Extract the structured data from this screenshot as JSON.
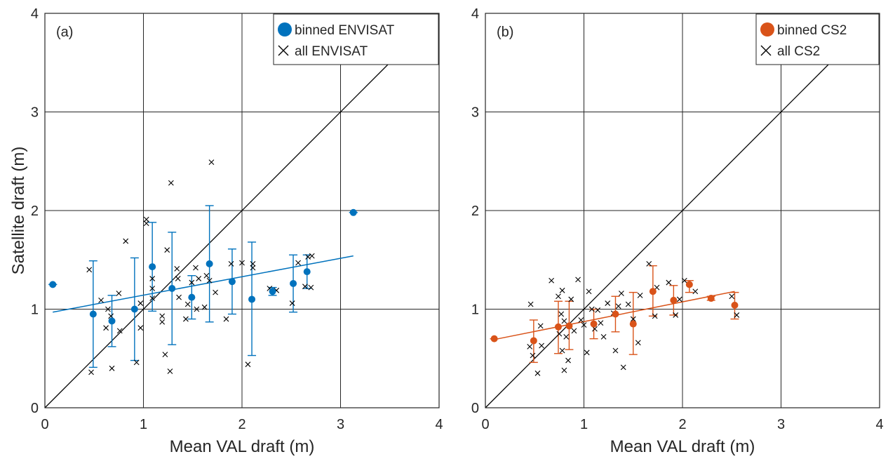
{
  "figure": {
    "ylabel": "Satellite draft (m)",
    "colors": {
      "envisat": "#0072BD",
      "cs2": "#D95319",
      "raw": "#000000",
      "grid": "#262626"
    }
  },
  "chart_data": [
    {
      "type": "scatter",
      "panel": "(a)",
      "xlabel": "Mean VAL draft (m)",
      "ylabel": "Satellite draft (m)",
      "xlim": [
        0,
        4
      ],
      "ylim": [
        0,
        4
      ],
      "xticks": [
        "0",
        "1",
        "2",
        "3",
        "4"
      ],
      "yticks": [
        "0",
        "1",
        "2",
        "3",
        "4"
      ],
      "grid": true,
      "legend_position": "top-right",
      "legend": [
        "binned ENVISAT",
        "all ENVISAT"
      ],
      "one_to_one_line": true,
      "fit_line": {
        "x": [
          0.08,
          3.13
        ],
        "y": [
          0.97,
          1.54
        ]
      },
      "series": [
        {
          "name": "binned ENVISAT",
          "color": "#0072BD",
          "marker": "circle",
          "points": [
            {
              "x": 0.08,
              "y": 1.25,
              "lo": 1.25,
              "hi": 1.25
            },
            {
              "x": 0.49,
              "y": 0.95,
              "lo": 0.41,
              "hi": 1.49
            },
            {
              "x": 0.68,
              "y": 0.88,
              "lo": 0.62,
              "hi": 1.14
            },
            {
              "x": 0.91,
              "y": 1.0,
              "lo": 0.48,
              "hi": 1.52
            },
            {
              "x": 1.09,
              "y": 1.43,
              "lo": 0.98,
              "hi": 1.88
            },
            {
              "x": 1.29,
              "y": 1.21,
              "lo": 0.64,
              "hi": 1.78
            },
            {
              "x": 1.49,
              "y": 1.12,
              "lo": 0.9,
              "hi": 1.34
            },
            {
              "x": 1.67,
              "y": 1.46,
              "lo": 0.87,
              "hi": 2.05
            },
            {
              "x": 1.9,
              "y": 1.28,
              "lo": 0.95,
              "hi": 1.61
            },
            {
              "x": 2.1,
              "y": 1.1,
              "lo": 0.53,
              "hi": 1.68
            },
            {
              "x": 2.31,
              "y": 1.18,
              "lo": 1.14,
              "hi": 1.22
            },
            {
              "x": 2.52,
              "y": 1.26,
              "lo": 0.97,
              "hi": 1.55
            },
            {
              "x": 2.66,
              "y": 1.38,
              "lo": 1.21,
              "hi": 1.55
            },
            {
              "x": 3.13,
              "y": 1.98,
              "lo": 1.98,
              "hi": 1.98
            }
          ]
        },
        {
          "name": "all ENVISAT",
          "color": "#000000",
          "marker": "x",
          "points": [
            {
              "x": 0.47,
              "y": 0.36
            },
            {
              "x": 0.45,
              "y": 1.4
            },
            {
              "x": 0.57,
              "y": 1.09
            },
            {
              "x": 0.62,
              "y": 0.81
            },
            {
              "x": 0.64,
              "y": 1.0
            },
            {
              "x": 0.67,
              "y": 0.93
            },
            {
              "x": 0.68,
              "y": 0.4
            },
            {
              "x": 0.75,
              "y": 1.16
            },
            {
              "x": 0.76,
              "y": 0.78
            },
            {
              "x": 0.82,
              "y": 1.69
            },
            {
              "x": 0.93,
              "y": 0.46
            },
            {
              "x": 0.97,
              "y": 0.81
            },
            {
              "x": 0.97,
              "y": 1.06
            },
            {
              "x": 1.03,
              "y": 1.91
            },
            {
              "x": 1.03,
              "y": 1.87
            },
            {
              "x": 1.09,
              "y": 1.31
            },
            {
              "x": 1.09,
              "y": 1.21
            },
            {
              "x": 1.09,
              "y": 1.11
            },
            {
              "x": 1.19,
              "y": 0.93
            },
            {
              "x": 1.19,
              "y": 0.87
            },
            {
              "x": 1.22,
              "y": 0.54
            },
            {
              "x": 1.24,
              "y": 1.6
            },
            {
              "x": 1.28,
              "y": 2.28
            },
            {
              "x": 1.27,
              "y": 0.37
            },
            {
              "x": 1.34,
              "y": 1.41
            },
            {
              "x": 1.36,
              "y": 1.12
            },
            {
              "x": 1.35,
              "y": 1.31
            },
            {
              "x": 1.43,
              "y": 0.9
            },
            {
              "x": 1.45,
              "y": 1.05
            },
            {
              "x": 1.49,
              "y": 1.27
            },
            {
              "x": 1.53,
              "y": 1.42
            },
            {
              "x": 1.54,
              "y": 1.0
            },
            {
              "x": 1.56,
              "y": 1.31
            },
            {
              "x": 1.62,
              "y": 1.02
            },
            {
              "x": 1.64,
              "y": 1.34
            },
            {
              "x": 1.67,
              "y": 1.29
            },
            {
              "x": 1.69,
              "y": 2.49
            },
            {
              "x": 1.73,
              "y": 1.17
            },
            {
              "x": 1.84,
              "y": 0.9
            },
            {
              "x": 1.89,
              "y": 1.46
            },
            {
              "x": 2.0,
              "y": 1.47
            },
            {
              "x": 2.06,
              "y": 0.44
            },
            {
              "x": 2.11,
              "y": 1.46
            },
            {
              "x": 2.11,
              "y": 1.42
            },
            {
              "x": 2.28,
              "y": 1.21
            },
            {
              "x": 2.35,
              "y": 1.19
            },
            {
              "x": 2.51,
              "y": 1.06
            },
            {
              "x": 2.57,
              "y": 1.47
            },
            {
              "x": 2.64,
              "y": 1.23
            },
            {
              "x": 2.67,
              "y": 1.53
            },
            {
              "x": 2.7,
              "y": 1.22
            },
            {
              "x": 2.71,
              "y": 1.54
            }
          ]
        }
      ]
    },
    {
      "type": "scatter",
      "panel": "(b)",
      "xlabel": "Mean VAL draft (m)",
      "xlim": [
        0,
        4
      ],
      "ylim": [
        0,
        4
      ],
      "xticks": [
        "0",
        "1",
        "2",
        "3",
        "4"
      ],
      "yticks": [
        "0",
        "1",
        "2",
        "3",
        "4"
      ],
      "grid": true,
      "legend_position": "top-right",
      "legend": [
        "binned CS2",
        "all CS2"
      ],
      "one_to_one_line": true,
      "fit_line": {
        "x": [
          0.08,
          2.53
        ],
        "y": [
          0.69,
          1.18
        ]
      },
      "series": [
        {
          "name": "binned CS2",
          "color": "#D95319",
          "marker": "circle",
          "points": [
            {
              "x": 0.09,
              "y": 0.7,
              "lo": 0.7,
              "hi": 0.7
            },
            {
              "x": 0.49,
              "y": 0.68,
              "lo": 0.46,
              "hi": 0.89
            },
            {
              "x": 0.74,
              "y": 0.82,
              "lo": 0.55,
              "hi": 1.08
            },
            {
              "x": 0.85,
              "y": 0.83,
              "lo": 0.59,
              "hi": 1.08
            },
            {
              "x": 1.1,
              "y": 0.85,
              "lo": 0.7,
              "hi": 1.0
            },
            {
              "x": 1.32,
              "y": 0.95,
              "lo": 0.77,
              "hi": 1.13
            },
            {
              "x": 1.5,
              "y": 0.85,
              "lo": 0.54,
              "hi": 1.17
            },
            {
              "x": 1.7,
              "y": 1.18,
              "lo": 0.93,
              "hi": 1.44
            },
            {
              "x": 1.91,
              "y": 1.09,
              "lo": 0.94,
              "hi": 1.24
            },
            {
              "x": 2.07,
              "y": 1.25,
              "lo": 1.17,
              "hi": 1.29
            },
            {
              "x": 2.29,
              "y": 1.11,
              "lo": 1.09,
              "hi": 1.13
            },
            {
              "x": 2.53,
              "y": 1.04,
              "lo": 0.9,
              "hi": 1.17
            }
          ]
        },
        {
          "name": "all CS2",
          "color": "#000000",
          "marker": "x",
          "points": [
            {
              "x": 0.45,
              "y": 0.62
            },
            {
              "x": 0.46,
              "y": 1.05
            },
            {
              "x": 0.48,
              "y": 0.53
            },
            {
              "x": 0.53,
              "y": 0.35
            },
            {
              "x": 0.57,
              "y": 0.63
            },
            {
              "x": 0.56,
              "y": 0.83
            },
            {
              "x": 0.67,
              "y": 1.29
            },
            {
              "x": 0.74,
              "y": 1.13
            },
            {
              "x": 0.75,
              "y": 0.75
            },
            {
              "x": 0.77,
              "y": 0.95
            },
            {
              "x": 0.78,
              "y": 1.19
            },
            {
              "x": 0.78,
              "y": 0.58
            },
            {
              "x": 0.8,
              "y": 0.38
            },
            {
              "x": 0.8,
              "y": 0.88
            },
            {
              "x": 0.82,
              "y": 0.72
            },
            {
              "x": 0.84,
              "y": 0.48
            },
            {
              "x": 0.87,
              "y": 1.1
            },
            {
              "x": 0.9,
              "y": 0.78
            },
            {
              "x": 0.94,
              "y": 1.3
            },
            {
              "x": 0.97,
              "y": 0.89
            },
            {
              "x": 1.0,
              "y": 0.84
            },
            {
              "x": 1.03,
              "y": 0.56
            },
            {
              "x": 1.05,
              "y": 1.18
            },
            {
              "x": 1.08,
              "y": 1.0
            },
            {
              "x": 1.11,
              "y": 0.8
            },
            {
              "x": 1.14,
              "y": 0.99
            },
            {
              "x": 1.17,
              "y": 0.86
            },
            {
              "x": 1.2,
              "y": 0.72
            },
            {
              "x": 1.24,
              "y": 1.06
            },
            {
              "x": 1.3,
              "y": 0.96
            },
            {
              "x": 1.32,
              "y": 0.58
            },
            {
              "x": 1.35,
              "y": 1.03
            },
            {
              "x": 1.38,
              "y": 1.16
            },
            {
              "x": 1.4,
              "y": 0.41
            },
            {
              "x": 1.45,
              "y": 1.05
            },
            {
              "x": 1.5,
              "y": 0.9
            },
            {
              "x": 1.55,
              "y": 0.66
            },
            {
              "x": 1.57,
              "y": 1.14
            },
            {
              "x": 1.66,
              "y": 1.46
            },
            {
              "x": 1.72,
              "y": 0.93
            },
            {
              "x": 1.74,
              "y": 1.22
            },
            {
              "x": 1.86,
              "y": 1.27
            },
            {
              "x": 1.93,
              "y": 0.94
            },
            {
              "x": 1.97,
              "y": 1.1
            },
            {
              "x": 2.02,
              "y": 1.29
            },
            {
              "x": 2.13,
              "y": 1.18
            },
            {
              "x": 2.5,
              "y": 1.13
            },
            {
              "x": 2.55,
              "y": 0.94
            }
          ]
        }
      ]
    }
  ]
}
